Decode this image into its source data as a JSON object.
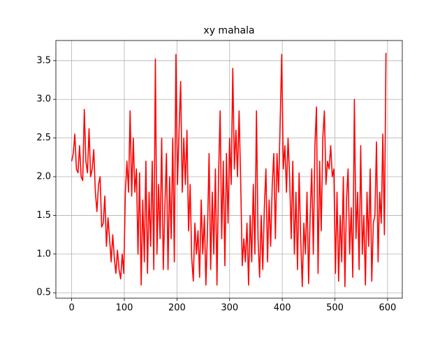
{
  "chart_data": {
    "type": "line",
    "title": "xy mahala",
    "color": "#ff0000",
    "grid": true,
    "xlim": [
      -30,
      628
    ],
    "ylim": [
      0.43,
      3.76
    ],
    "xticks": [
      0,
      100,
      200,
      300,
      400,
      500,
      600
    ],
    "yticks": [
      0.5,
      {
        "value": 1,
        "label": "1.0"
      },
      1.5,
      {
        "value": 2,
        "label": "2.0"
      },
      2.5,
      {
        "value": 3,
        "label": "3.0"
      },
      3.5
    ],
    "x": [
      0,
      3,
      6,
      9,
      12,
      15,
      18,
      21,
      24,
      27,
      30,
      33,
      36,
      39,
      42,
      45,
      48,
      51,
      54,
      57,
      60,
      63,
      66,
      69,
      72,
      75,
      78,
      81,
      84,
      87,
      90,
      93,
      96,
      99,
      102,
      105,
      108,
      111,
      114,
      117,
      120,
      123,
      126,
      129,
      132,
      135,
      138,
      141,
      144,
      147,
      150,
      153,
      156,
      159,
      162,
      165,
      168,
      171,
      174,
      177,
      180,
      183,
      186,
      189,
      192,
      195,
      198,
      201,
      204,
      207,
      210,
      213,
      216,
      219,
      222,
      225,
      228,
      231,
      234,
      237,
      240,
      243,
      246,
      249,
      252,
      255,
      258,
      261,
      264,
      267,
      270,
      273,
      276,
      279,
      282,
      285,
      288,
      291,
      294,
      297,
      300,
      303,
      306,
      309,
      312,
      315,
      318,
      321,
      324,
      327,
      330,
      333,
      336,
      339,
      342,
      345,
      348,
      351,
      354,
      357,
      360,
      363,
      366,
      369,
      372,
      375,
      378,
      381,
      384,
      387,
      390,
      393,
      396,
      399,
      402,
      405,
      408,
      411,
      414,
      417,
      420,
      423,
      426,
      429,
      432,
      435,
      438,
      441,
      444,
      447,
      450,
      453,
      456,
      459,
      462,
      465,
      468,
      471,
      474,
      477,
      480,
      483,
      486,
      489,
      492,
      495,
      498,
      501,
      504,
      507,
      510,
      513,
      516,
      519,
      522,
      525,
      528,
      531,
      534,
      537,
      540,
      543,
      546,
      549,
      552,
      555,
      558,
      561,
      564,
      567,
      570,
      573,
      576,
      579,
      582,
      585,
      588,
      591,
      594,
      597
    ],
    "values": [
      2.2,
      2.3,
      2.55,
      2.1,
      2.05,
      2.4,
      2.0,
      1.95,
      2.87,
      2.2,
      2.05,
      2.62,
      2.0,
      2.1,
      2.35,
      1.8,
      1.55,
      1.9,
      2.0,
      1.35,
      1.4,
      1.75,
      1.1,
      1.47,
      1.2,
      0.9,
      1.25,
      0.95,
      0.75,
      1.05,
      0.8,
      0.68,
      1.0,
      0.75,
      1.8,
      2.2,
      1.8,
      2.85,
      1.75,
      2.5,
      1.8,
      2.1,
      1.0,
      2.05,
      0.6,
      1.7,
      0.9,
      2.2,
      0.75,
      1.8,
      1.1,
      2.2,
      0.8,
      3.52,
      1.0,
      1.9,
      1.2,
      2.5,
      0.8,
      1.6,
      2.3,
      0.8,
      2.0,
      1.2,
      2.5,
      0.9,
      3.58,
      1.9,
      2.6,
      3.23,
      1.8,
      2.5,
      1.9,
      2.6,
      1.3,
      1.9,
      0.95,
      0.65,
      1.4,
      1.0,
      1.3,
      0.7,
      1.7,
      1.0,
      1.5,
      0.6,
      1.3,
      2.3,
      0.8,
      1.8,
      1.0,
      2.1,
      0.6,
      2.0,
      2.85,
      1.2,
      2.2,
      0.85,
      2.3,
      1.4,
      2.5,
      1.9,
      3.4,
      2.1,
      2.6,
      2.0,
      2.85,
      1.95,
      0.85,
      1.2,
      0.9,
      1.4,
      0.6,
      1.5,
      0.9,
      1.9,
      1.0,
      2.85,
      1.2,
      0.7,
      1.5,
      0.8,
      1.6,
      2.1,
      0.9,
      1.7,
      1.1,
      1.9,
      2.3,
      1.2,
      2.3,
      1.8,
      2.7,
      3.58,
      2.1,
      2.4,
      1.8,
      2.5,
      2.0,
      1.2,
      2.2,
      1.0,
      1.8,
      0.8,
      2.05,
      1.2,
      0.58,
      1.4,
      1.0,
      1.8,
      0.62,
      1.5,
      2.1,
      1.0,
      2.4,
      2.9,
      0.75,
      2.2,
      1.3,
      2.5,
      2.85,
      1.9,
      2.2,
      2.1,
      2.4,
      2.0,
      2.1,
      0.75,
      1.8,
      0.65,
      1.5,
      0.9,
      2.0,
      0.58,
      1.7,
      2.1,
      1.0,
      1.6,
      0.7,
      3.0,
      1.2,
      1.8,
      0.8,
      2.4,
      1.0,
      1.5,
      0.6,
      1.8,
      1.1,
      2.1,
      0.65,
      1.4,
      1.5,
      2.45,
      0.9,
      1.8,
      1.4,
      2.55,
      1.25,
      3.6
    ]
  }
}
